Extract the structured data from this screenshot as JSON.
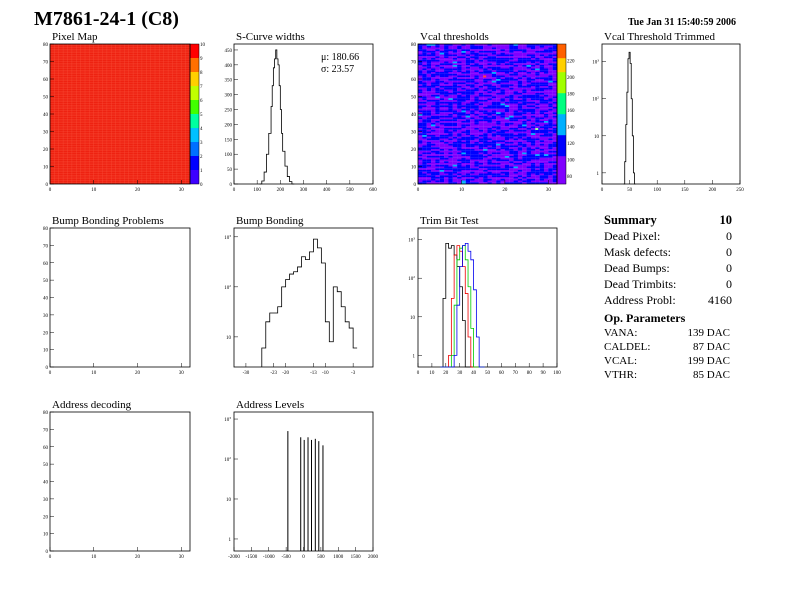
{
  "header": {
    "title": "M7861-24-1 (C8)",
    "date": "Tue Jan 31 15:40:59 2006"
  },
  "summary": {
    "title": "Summary",
    "value": "10",
    "rows": [
      {
        "label": "Dead Pixel:",
        "value": "0"
      },
      {
        "label": "Mask defects:",
        "value": "0"
      },
      {
        "label": "Dead Bumps:",
        "value": "0"
      },
      {
        "label": "Dead Trimbits:",
        "value": "0"
      },
      {
        "label": "Address Probl:",
        "value": "4160"
      }
    ]
  },
  "op_parameters": {
    "title": "Op. Parameters",
    "rows": [
      {
        "label": "VANA:",
        "value": "139 DAC"
      },
      {
        "label": "CALDEL:",
        "value": "87 DAC"
      },
      {
        "label": "VCAL:",
        "value": "199 DAC"
      },
      {
        "label": "VTHR:",
        "value": "85 DAC"
      }
    ]
  },
  "colors": {
    "frame": "#000000",
    "pixelmap_fill": "#ee2211",
    "vcal_fill": "#2255ee",
    "trim_series": [
      "#000000",
      "#ee0000",
      "#00cc00",
      "#0000ee"
    ]
  },
  "chart_data": [
    {
      "id": "pixel-map",
      "type": "heatmap",
      "title": "Pixel Map",
      "xlim": [
        0,
        32
      ],
      "ylim": [
        0,
        80
      ],
      "xticks": [
        "0",
        "10",
        "20",
        "30"
      ],
      "yticks": [
        "0",
        "10",
        "20",
        "30",
        "40",
        "50",
        "60",
        "70",
        "80"
      ],
      "z_value": 10,
      "zticks": [
        "0",
        "1",
        "2",
        "3",
        "4",
        "5",
        "6",
        "7",
        "8",
        "9",
        "10"
      ]
    },
    {
      "id": "scurve-widths",
      "type": "line",
      "title": "S-Curve widths",
      "xlim": [
        0,
        600
      ],
      "ylim": [
        0,
        470
      ],
      "xticks": [
        "0",
        "100",
        "200",
        "300",
        "400",
        "500",
        "600"
      ],
      "yticks": [
        "0",
        "50",
        "100",
        "150",
        "200",
        "250",
        "300",
        "350",
        "400",
        "450"
      ],
      "stats": [
        {
          "label": "μ:",
          "value": "180.66"
        },
        {
          "label": "σ:",
          "value": "23.57"
        }
      ],
      "x": [
        110,
        120,
        130,
        140,
        150,
        160,
        165,
        170,
        175,
        180,
        185,
        190,
        195,
        200,
        205,
        210,
        220,
        230,
        240,
        250
      ],
      "y": [
        0,
        10,
        40,
        100,
        170,
        260,
        330,
        390,
        420,
        450,
        420,
        400,
        330,
        250,
        170,
        110,
        60,
        25,
        8,
        0
      ]
    },
    {
      "id": "vcal-thresholds",
      "type": "heatmap",
      "title": "Vcal thresholds",
      "xlim": [
        0,
        32
      ],
      "ylim": [
        0,
        80
      ],
      "xticks": [
        "0",
        "10",
        "20",
        "30"
      ],
      "yticks": [
        "0",
        "10",
        "20",
        "30",
        "40",
        "50",
        "60",
        "70",
        "80"
      ],
      "zticks": [
        "80",
        "100",
        "120",
        "140",
        "160",
        "180",
        "200",
        "220"
      ],
      "zlim": [
        70,
        240
      ],
      "typical_value": 100
    },
    {
      "id": "vcal-threshold-trimmed",
      "type": "line",
      "title": "Vcal Threshold Trimmed",
      "log_y": true,
      "xlim": [
        0,
        255
      ],
      "ylim": [
        0.5,
        3000
      ],
      "xticks": [
        "0",
        "50",
        "100",
        "150",
        "200",
        "250"
      ],
      "yticks": [
        {
          "base": "1",
          "exp": ""
        },
        {
          "base": "10",
          "exp": ""
        },
        {
          "base": "10",
          "exp": "2"
        },
        {
          "base": "10",
          "exp": "3"
        }
      ],
      "x": [
        40,
        42,
        44,
        46,
        48,
        50,
        52,
        54,
        56,
        58,
        60
      ],
      "y": [
        0.5,
        2,
        20,
        150,
        1200,
        1800,
        900,
        100,
        10,
        1,
        0.5
      ]
    },
    {
      "id": "bump-bonding-problems",
      "type": "heatmap",
      "title": "Bump Bonding Problems",
      "xlim": [
        0,
        32
      ],
      "ylim": [
        0,
        80
      ],
      "xticks": [
        "0",
        "10",
        "20",
        "30"
      ],
      "yticks": [
        "0",
        "10",
        "20",
        "30",
        "40",
        "50",
        "60",
        "70",
        "80"
      ]
    },
    {
      "id": "bump-bonding",
      "type": "line",
      "title": "Bump Bonding",
      "log_y": true,
      "xlim": [
        -33,
        2
      ],
      "ylim": [
        2.5,
        1500
      ],
      "xticks": [
        "-30",
        "-23",
        "-20",
        "-13",
        "-10",
        "-3"
      ],
      "yticks": [
        {
          "base": "10",
          "exp": ""
        },
        {
          "base": "10",
          "exp": "2"
        },
        {
          "base": "10",
          "exp": "3"
        }
      ],
      "x": [
        -26,
        -25,
        -24,
        -23,
        -22,
        -21,
        -20,
        -19,
        -18,
        -17,
        -16,
        -15,
        -14,
        -13,
        -12,
        -11,
        -10,
        -9,
        -8,
        -7,
        -6,
        -5,
        -4,
        -3
      ],
      "y": [
        6,
        20,
        30,
        30,
        40,
        100,
        140,
        180,
        200,
        250,
        400,
        350,
        500,
        900,
        600,
        300,
        20,
        8,
        100,
        80,
        40,
        20,
        15,
        6
      ]
    },
    {
      "id": "trim-bit-test",
      "type": "line",
      "title": "Trim Bit Test",
      "log_y": true,
      "xlim": [
        0,
        100
      ],
      "ylim": [
        0.5,
        2000
      ],
      "xticks": [
        "0",
        "10",
        "20",
        "30",
        "40",
        "50",
        "60",
        "70",
        "80",
        "90",
        "100"
      ],
      "yticks": [
        {
          "base": "1",
          "exp": ""
        },
        {
          "base": "10",
          "exp": ""
        },
        {
          "base": "10",
          "exp": "2"
        },
        {
          "base": "10",
          "exp": "3"
        }
      ],
      "x": [
        16,
        18,
        20,
        22,
        24,
        26,
        28,
        30,
        32,
        34,
        36,
        38,
        40,
        42,
        44,
        46
      ],
      "series": [
        {
          "values": [
            0.5,
            30,
            800,
            600,
            700,
            400,
            200,
            60,
            8,
            0.5,
            0.5,
            0.5,
            0.5,
            0.5,
            0.5,
            0.5
          ]
        },
        {
          "values": [
            0.5,
            0.5,
            0.5,
            1,
            30,
            400,
            700,
            500,
            200,
            40,
            3,
            0.5,
            0.5,
            0.5,
            0.5,
            0.5
          ]
        },
        {
          "values": [
            0.5,
            0.5,
            0.5,
            0.5,
            1,
            20,
            300,
            600,
            700,
            300,
            60,
            5,
            0.5,
            0.5,
            0.5,
            0.5
          ]
        },
        {
          "values": [
            0.5,
            0.5,
            0.5,
            0.5,
            0.5,
            1,
            20,
            200,
            700,
            800,
            500,
            300,
            50,
            3,
            0.5,
            0.5
          ]
        }
      ]
    },
    {
      "id": "address-decoding",
      "type": "heatmap",
      "title": "Address decoding",
      "xlim": [
        0,
        32
      ],
      "ylim": [
        0,
        80
      ],
      "xticks": [
        "0",
        "10",
        "20",
        "30"
      ],
      "yticks": [
        "0",
        "10",
        "20",
        "30",
        "40",
        "50",
        "60",
        "70",
        "80"
      ]
    },
    {
      "id": "address-levels",
      "type": "line",
      "title": "Address Levels",
      "log_y": true,
      "xlim": [
        -2000,
        2000
      ],
      "ylim": [
        0.5,
        1500
      ],
      "xticks": [
        "-2000",
        "-1500",
        "-1000",
        "-500",
        "0",
        "500",
        "1000",
        "1500",
        "2000"
      ],
      "yticks": [
        {
          "base": "1",
          "exp": ""
        },
        {
          "base": "10",
          "exp": ""
        },
        {
          "base": "10",
          "exp": "2"
        },
        {
          "base": "10",
          "exp": "3"
        }
      ],
      "peaks": [
        {
          "x": -450,
          "y": 500
        },
        {
          "x": -80,
          "y": 350
        },
        {
          "x": 20,
          "y": 300
        },
        {
          "x": 130,
          "y": 350
        },
        {
          "x": 230,
          "y": 300
        },
        {
          "x": 340,
          "y": 320
        },
        {
          "x": 440,
          "y": 280
        },
        {
          "x": 560,
          "y": 220
        }
      ]
    }
  ]
}
